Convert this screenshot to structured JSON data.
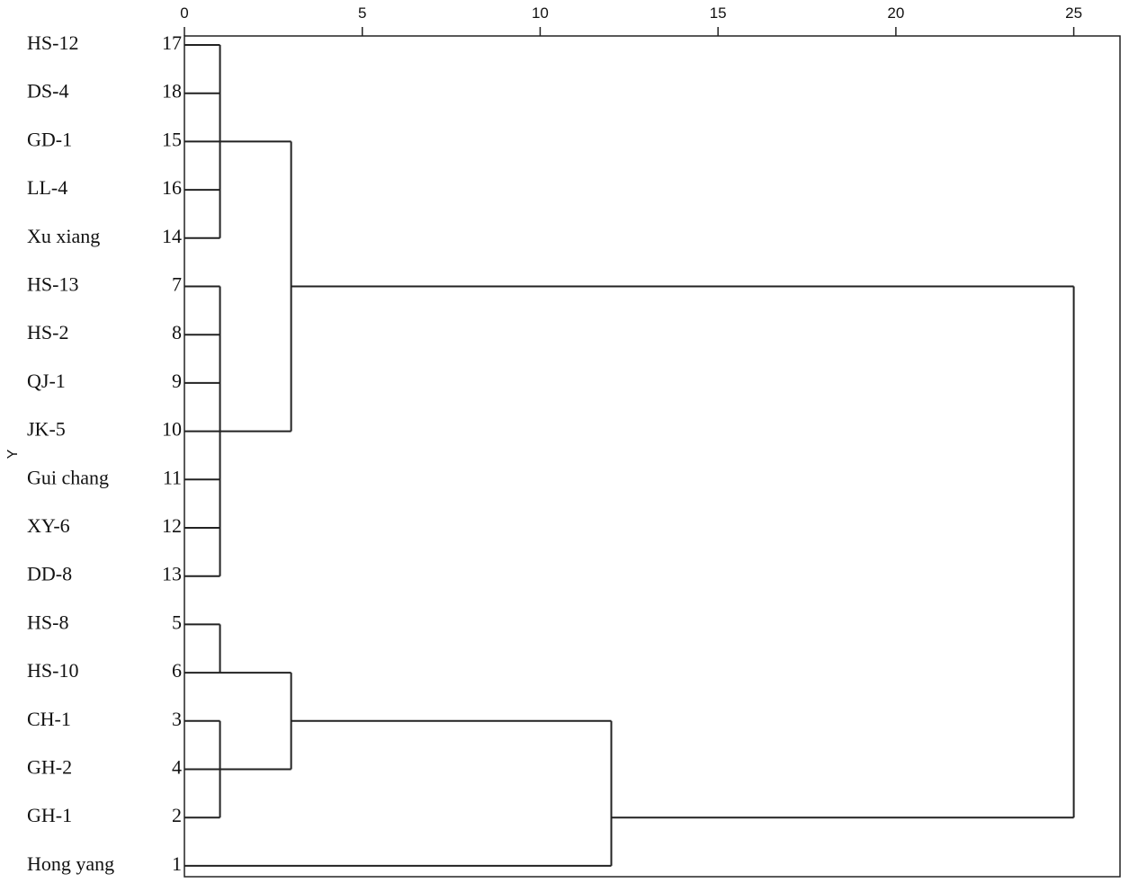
{
  "chart_data": {
    "type": "dendrogram",
    "y_label": "Y",
    "xlim": [
      0,
      26.3
    ],
    "xticks": [
      0,
      5,
      10,
      15,
      20,
      25
    ],
    "leaves": [
      {
        "label": "HS-12",
        "number": 17
      },
      {
        "label": "DS-4",
        "number": 18
      },
      {
        "label": "GD-1",
        "number": 15
      },
      {
        "label": "LL-4",
        "number": 16
      },
      {
        "label": "Xu xiang",
        "number": 14
      },
      {
        "label": "HS-13",
        "number": 7
      },
      {
        "label": "HS-2",
        "number": 8
      },
      {
        "label": "QJ-1",
        "number": 9
      },
      {
        "label": "JK-5",
        "number": 10
      },
      {
        "label": "Gui chang",
        "number": 11
      },
      {
        "label": "XY-6",
        "number": 12
      },
      {
        "label": "DD-8",
        "number": 13
      },
      {
        "label": "HS-8",
        "number": 5
      },
      {
        "label": "HS-10",
        "number": 6
      },
      {
        "label": "CH-1",
        "number": 3
      },
      {
        "label": "GH-2",
        "number": 4
      },
      {
        "label": "GH-1",
        "number": 2
      },
      {
        "label": "Hong yang",
        "number": 1
      }
    ],
    "merges": [
      {
        "leaves": [
          0,
          1,
          2,
          3,
          4
        ],
        "height": 1
      },
      {
        "leaves": [
          5,
          6,
          7,
          8,
          9,
          10,
          11
        ],
        "height": 1
      },
      {
        "leaves": [
          12,
          13
        ],
        "height": 1
      },
      {
        "leaves": [
          14,
          15,
          16
        ],
        "height": 1
      },
      {
        "merges": [
          0,
          1
        ],
        "height": 3
      },
      {
        "merges": [
          2,
          3
        ],
        "height": 3
      },
      {
        "merges": [
          5
        ],
        "leaves": [
          17
        ],
        "height": 12
      },
      {
        "merges": [
          4,
          6
        ],
        "height": 25
      }
    ]
  }
}
